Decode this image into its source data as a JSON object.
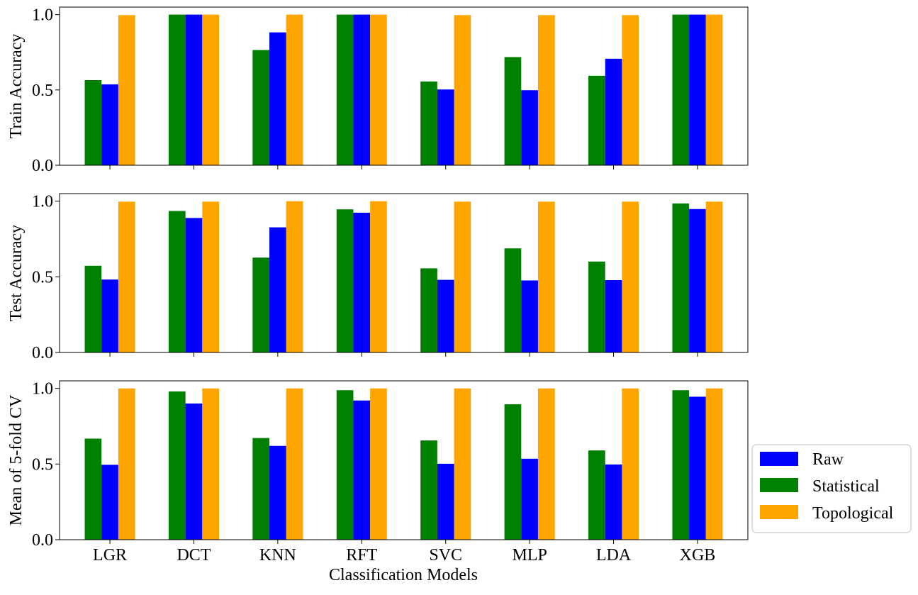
{
  "chart_data": {
    "type": "bar",
    "xlabel": "Classification Models",
    "categories": [
      "LGR",
      "DCT",
      "KNN",
      "RFT",
      "SVC",
      "MLP",
      "LDA",
      "XGB"
    ],
    "legend": {
      "placement": "lower-right-outside",
      "entries": [
        {
          "name": "Raw",
          "color": "#0000ff"
        },
        {
          "name": "Statistical",
          "color": "#008000"
        },
        {
          "name": "Topological",
          "color": "#ffa500"
        }
      ]
    },
    "subplots": [
      {
        "ylabel": "Train Accuracy",
        "ylim": [
          0,
          1.05
        ],
        "yticks": [
          "0.0",
          "0.5",
          "1.0"
        ],
        "series": [
          {
            "name": "Statistical",
            "color": "#008000",
            "values": [
              0.565,
              1.0,
              0.765,
              1.0,
              0.556,
              0.718,
              0.594,
              1.0
            ]
          },
          {
            "name": "Raw",
            "color": "#0000ff",
            "values": [
              0.537,
              1.0,
              0.882,
              1.0,
              0.503,
              0.498,
              0.707,
              1.0
            ]
          },
          {
            "name": "Topological",
            "color": "#ffa500",
            "values": [
              0.997,
              1.0,
              1.0,
              1.0,
              0.997,
              0.997,
              0.997,
              1.0
            ]
          }
        ]
      },
      {
        "ylabel": "Test Accuracy",
        "ylim": [
          0,
          1.05
        ],
        "yticks": [
          "0.0",
          "0.5",
          "1.0"
        ],
        "series": [
          {
            "name": "Statistical",
            "color": "#008000",
            "values": [
              0.573,
              0.935,
              0.627,
              0.946,
              0.556,
              0.688,
              0.601,
              0.985
            ]
          },
          {
            "name": "Raw",
            "color": "#0000ff",
            "values": [
              0.482,
              0.889,
              0.827,
              0.924,
              0.48,
              0.476,
              0.478,
              0.948
            ]
          },
          {
            "name": "Topological",
            "color": "#ffa500",
            "values": [
              0.997,
              0.997,
              1.0,
              1.0,
              0.997,
              0.997,
              0.997,
              0.997
            ]
          }
        ]
      },
      {
        "ylabel": "Mean of 5-fold CV",
        "ylim": [
          0,
          1.05
        ],
        "yticks": [
          "0.0",
          "0.5",
          "1.0"
        ],
        "series": [
          {
            "name": "Statistical",
            "color": "#008000",
            "values": [
              0.668,
              0.98,
              0.672,
              0.988,
              0.656,
              0.895,
              0.59,
              0.988
            ]
          },
          {
            "name": "Raw",
            "color": "#0000ff",
            "values": [
              0.495,
              0.9,
              0.62,
              0.92,
              0.502,
              0.535,
              0.497,
              0.945
            ]
          },
          {
            "name": "Topological",
            "color": "#ffa500",
            "values": [
              1.0,
              1.0,
              1.0,
              1.0,
              1.0,
              1.0,
              1.0,
              1.0
            ]
          }
        ]
      }
    ]
  }
}
